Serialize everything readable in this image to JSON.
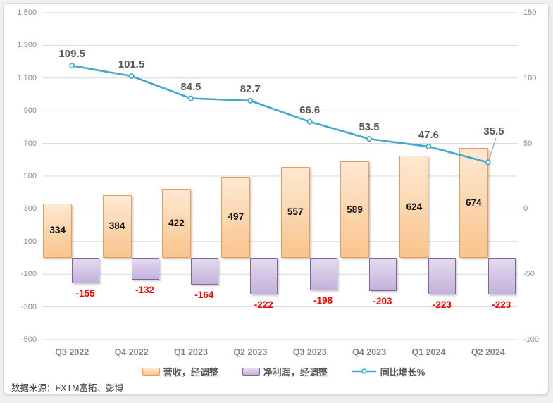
{
  "page": {
    "source_note": "数据来源：FXTM富拓、彭博"
  },
  "chart_data": {
    "type": "combo-bar-line",
    "categories": [
      "Q3 2022",
      "Q4 2022",
      "Q1 2023",
      "Q2 2023",
      "Q3 2023",
      "Q4 2023",
      "Q1 2024",
      "Q2 2024"
    ],
    "series": [
      {
        "name": "营收，经调整",
        "type": "bar",
        "axis": "left",
        "values": [
          334,
          384,
          422,
          497,
          557,
          589,
          624,
          674
        ]
      },
      {
        "name": "净利润，经调整",
        "type": "bar",
        "axis": "left",
        "values": [
          -155,
          -132,
          -164,
          -222,
          -198,
          -203,
          -223,
          -223
        ]
      },
      {
        "name": "同比增长%",
        "type": "line",
        "axis": "right",
        "values": [
          109.5,
          101.5,
          84.5,
          82.7,
          66.6,
          53.5,
          47.6,
          35.5
        ]
      }
    ],
    "left_axis": {
      "min": -500,
      "max": 1500,
      "step": 200,
      "tick_labels": [
        "1,500",
        "1,300",
        "1,100",
        "900",
        "700",
        "500",
        "300",
        "100",
        "-100",
        "-300",
        "-500"
      ]
    },
    "right_axis": {
      "min": -100,
      "max": 150,
      "step": 50,
      "tick_labels": [
        "150",
        "100",
        "50",
        "0",
        "-50",
        "-100"
      ]
    },
    "grid": true,
    "legend_position": "bottom",
    "colors": {
      "bar1_fill_top": "#FDE9D2",
      "bar1_fill_bottom": "#F9C48D",
      "bar1_border": "#ED9D53",
      "bar1_label": "#111111",
      "bar2_fill_top": "#E4DCEF",
      "bar2_fill_bottom": "#C3B2DB",
      "bar2_border": "#7D64A4",
      "bar2_label": "#FF0000",
      "line": "#41A9C9",
      "line_marker_fill": "#EAF6FA",
      "line_label": "#595959",
      "axis_text": "#8C8C8C",
      "grid": "#D9D9D9",
      "leader": "#A0A0A0"
    }
  }
}
